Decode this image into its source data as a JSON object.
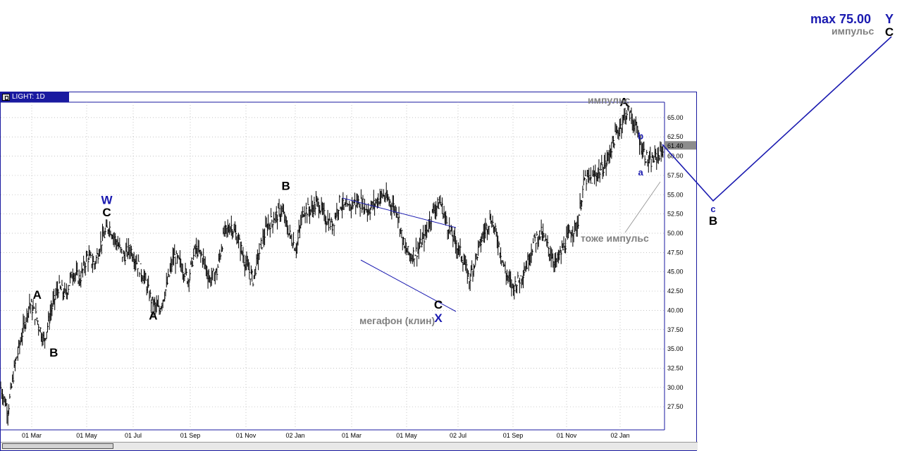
{
  "window": {
    "title": "LIGHT: 1D"
  },
  "colors": {
    "price": "#000000",
    "wave_black": "#000000",
    "wave_blue": "#1a1ab0",
    "note_gray": "#808080",
    "frame": "#1a1aa0"
  },
  "chart_data": {
    "type": "line",
    "series": [
      {
        "values": [
          30,
          27,
          33,
          37,
          41,
          39,
          36,
          40,
          43,
          42,
          45,
          44,
          47,
          46,
          49,
          51,
          49,
          47,
          48,
          46,
          44,
          41,
          40,
          43,
          47,
          46,
          44,
          48,
          47,
          44,
          45,
          50,
          51,
          49,
          46,
          44,
          48,
          51,
          52,
          53,
          50,
          48,
          53,
          53,
          54,
          52,
          51,
          54,
          53,
          54,
          54,
          53,
          54,
          55,
          54,
          53,
          48,
          47,
          48,
          50,
          53,
          54,
          51,
          49,
          47,
          44,
          47,
          50,
          52,
          49,
          45,
          43,
          44,
          46,
          49,
          50,
          48,
          46,
          48,
          50,
          51,
          57,
          57,
          58,
          59,
          62,
          64,
          66,
          64,
          61,
          59,
          60,
          61
        ]
      }
    ],
    "x_axis": {
      "ticks": [
        "01 Mar",
        "01 May",
        "01 Jul",
        "01 Sep",
        "01 Nov",
        "02 Jan",
        "01 Mar",
        "01 May",
        "02 Jul",
        "01 Sep",
        "01 Nov",
        "02 Jan"
      ]
    },
    "y_axis": {
      "ticks": [
        "65.00",
        "62.50",
        "60.00",
        "57.50",
        "55.00",
        "52.50",
        "50.00",
        "47.50",
        "45.00",
        "42.50",
        "40.00",
        "37.50",
        "35.00",
        "32.50",
        "30.00",
        "27.50"
      ],
      "range": [
        24.5,
        67
      ]
    },
    "last_price": "61.40",
    "wave_labels": [
      {
        "text": "A",
        "x": 5.5,
        "y": 41.5,
        "color": "black"
      },
      {
        "text": "B",
        "x": 8,
        "y": 34,
        "color": "black"
      },
      {
        "text": "W",
        "x": 16,
        "y": 53.8,
        "color": "blue"
      },
      {
        "text": "C",
        "x": 16,
        "y": 52.2,
        "color": "black"
      },
      {
        "text": "A",
        "x": 23,
        "y": 38.8,
        "color": "black"
      },
      {
        "text": "B",
        "x": 43,
        "y": 55.6,
        "color": "black"
      },
      {
        "text": "C",
        "x": 66,
        "y": 40.2,
        "color": "black"
      },
      {
        "text": "X",
        "x": 66,
        "y": 38.5,
        "color": "blue"
      },
      {
        "text": "A",
        "x": 94,
        "y": 66.5,
        "color": "black"
      }
    ],
    "wave_labels_small": [
      {
        "text": "b",
        "x": 96.5,
        "y": 62.2
      },
      {
        "text": "a",
        "x": 96.5,
        "y": 57.5
      }
    ],
    "annotations": {
      "impulse_top": "импульс",
      "impulse_also": "тоже импульс",
      "megaphone": "мегафон (клин)",
      "max_label": "max 75.00",
      "max_wave": "Y",
      "target_impulse": "импульс",
      "target_wave": "C",
      "low_wave_small": "c",
      "low_wave": "B"
    }
  }
}
